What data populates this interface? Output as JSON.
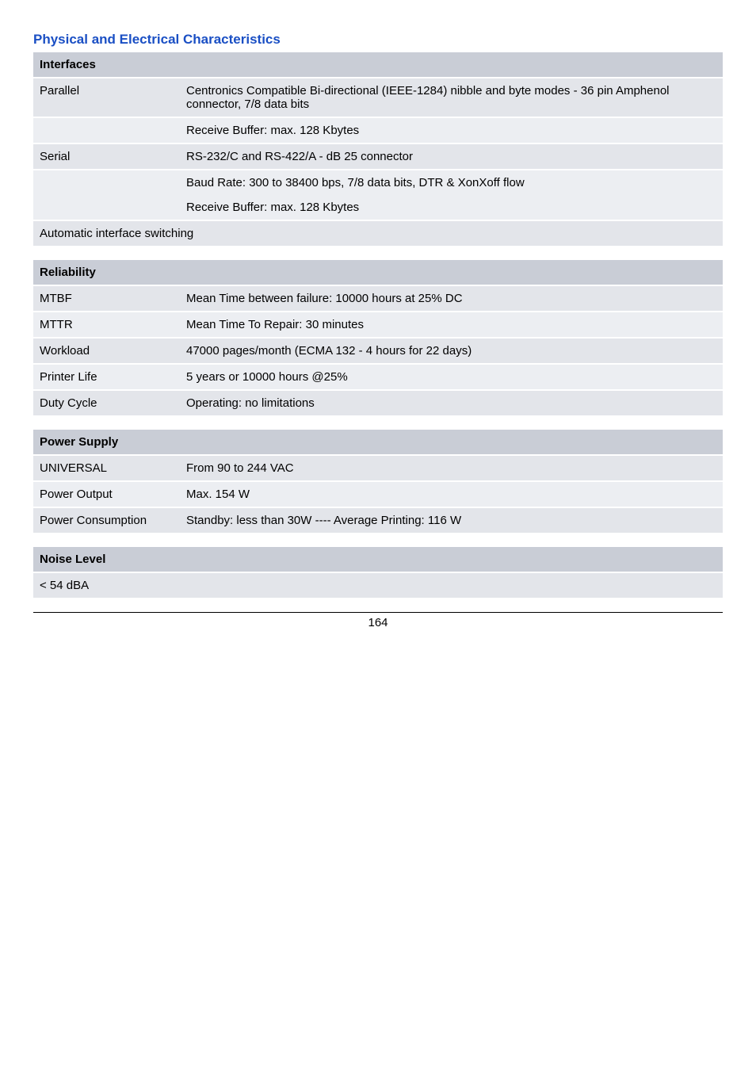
{
  "section_title": "Physical and Electrical Characteristics",
  "section_title_color": "#1a4fc4",
  "section_title_fontsize": 17,
  "body_fontsize": 15,
  "page_number": "164",
  "colors": {
    "header_bg": "#c9cdd6",
    "row_zebra_a": "#e3e5ea",
    "row_zebra_b": "#eceef2",
    "text": "#000000",
    "white_gap": "#ffffff"
  },
  "interfaces": {
    "header": "Interfaces",
    "rows": [
      {
        "label": "Parallel",
        "value": "Centronics Compatible Bi-directional (IEEE-1284) nibble and byte modes - 36 pin Amphenol connector, 7/8 data bits"
      },
      {
        "label": "",
        "value": "Receive Buffer: max. 128 Kbytes"
      },
      {
        "label": "Serial",
        "value": "RS-232/C and RS-422/A - dB 25 connector"
      },
      {
        "label": "",
        "value": "Baud Rate: 300 to 38400 bps, 7/8 data bits, DTR & XonXoff flow"
      },
      {
        "label": "",
        "value": "Receive Buffer: max. 128 Kbytes"
      }
    ],
    "footer": "Automatic interface switching"
  },
  "reliability": {
    "header": "Reliability",
    "rows": [
      {
        "label": "MTBF",
        "value": "Mean Time between failure: 10000 hours at 25% DC"
      },
      {
        "label": "MTTR",
        "value": "Mean Time To Repair: 30 minutes"
      },
      {
        "label": "Workload",
        "value": "47000 pages/month (ECMA 132 - 4 hours for 22 days)"
      },
      {
        "label": "Printer Life",
        "value": "5 years or 10000 hours @25%"
      },
      {
        "label": "Duty Cycle",
        "value": "Operating: no limitations"
      }
    ]
  },
  "power_supply": {
    "header": "Power Supply",
    "rows": [
      {
        "label": "UNIVERSAL",
        "value": "From 90 to 244 VAC"
      },
      {
        "label": "Power Output",
        "value": "Max. 154 W"
      },
      {
        "label": "Power Consumption",
        "value": "Standby: less than 30W ---- Average Printing: 116 W"
      }
    ]
  },
  "noise_level": {
    "header": "Noise Level",
    "rows": [
      {
        "full": "< 54 dBA"
      }
    ]
  }
}
